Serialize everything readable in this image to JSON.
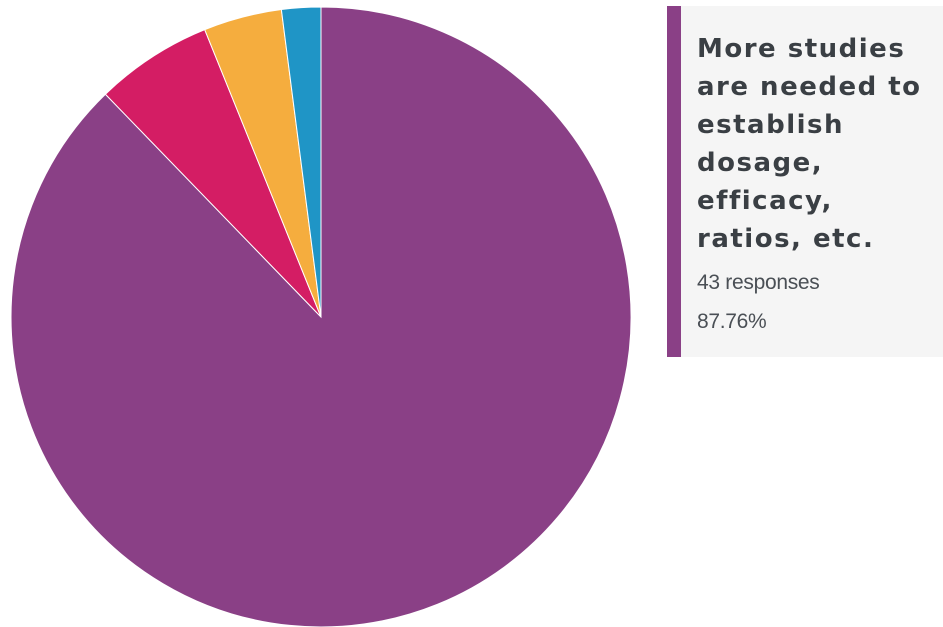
{
  "chart_data": {
    "type": "pie",
    "slices": [
      {
        "value": 87.76,
        "color": "#8a4086",
        "active": true
      },
      {
        "value": 6.12,
        "color": "#d41d64"
      },
      {
        "value": 4.08,
        "color": "#f5ad3e"
      },
      {
        "value": 2.04,
        "color": "#1f95c6"
      }
    ],
    "start": "top",
    "direction": "clockwise",
    "grid": false,
    "legend": "none"
  },
  "callout": {
    "title": "More studies are needed to establish dosage, efficacy, ratios, etc.",
    "count_text": "43 responses",
    "percent_text": "87.76%",
    "accent_color": "#8a4086"
  }
}
